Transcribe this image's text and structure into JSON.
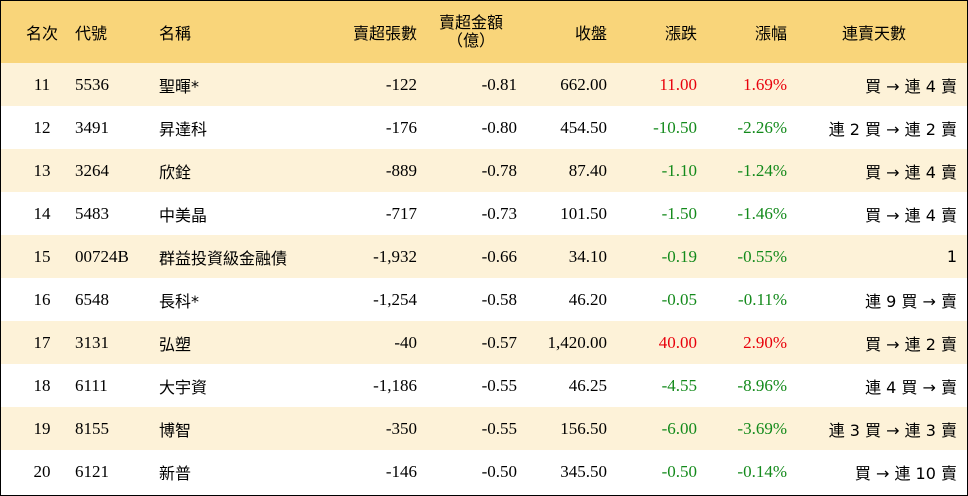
{
  "header": {
    "rank": "名次",
    "code": "代號",
    "name": "名稱",
    "net_sell_volume": "賣超張數",
    "net_sell_amount_line1": "賣超金額",
    "net_sell_amount_line2": "（億）",
    "close": "收盤",
    "change": "漲跌",
    "change_pct": "漲幅",
    "streak_days": "連賣天數"
  },
  "colors": {
    "header_bg": "#f9d57a",
    "alt_row_bg": "#fdf2d8",
    "up": "#e8000b",
    "down": "#138a1b"
  },
  "rows": [
    {
      "rank": "11",
      "code": "5536",
      "name": "聖暉*",
      "volume": "-122",
      "amount": "-0.81",
      "close": "662.00",
      "change": "11.00",
      "change_pct": "1.69%",
      "direction": "up",
      "streak": "買 → 連 4 賣"
    },
    {
      "rank": "12",
      "code": "3491",
      "name": "昇達科",
      "volume": "-176",
      "amount": "-0.80",
      "close": "454.50",
      "change": "-10.50",
      "change_pct": "-2.26%",
      "direction": "down",
      "streak": "連 2 買 → 連 2 賣"
    },
    {
      "rank": "13",
      "code": "3264",
      "name": "欣銓",
      "volume": "-889",
      "amount": "-0.78",
      "close": "87.40",
      "change": "-1.10",
      "change_pct": "-1.24%",
      "direction": "down",
      "streak": "買 → 連 4 賣"
    },
    {
      "rank": "14",
      "code": "5483",
      "name": "中美晶",
      "volume": "-717",
      "amount": "-0.73",
      "close": "101.50",
      "change": "-1.50",
      "change_pct": "-1.46%",
      "direction": "down",
      "streak": "買 → 連 4 賣"
    },
    {
      "rank": "15",
      "code": "00724B",
      "name": "群益投資級金融債",
      "volume": "-1,932",
      "amount": "-0.66",
      "close": "34.10",
      "change": "-0.19",
      "change_pct": "-0.55%",
      "direction": "down",
      "streak": "1"
    },
    {
      "rank": "16",
      "code": "6548",
      "name": "長科*",
      "volume": "-1,254",
      "amount": "-0.58",
      "close": "46.20",
      "change": "-0.05",
      "change_pct": "-0.11%",
      "direction": "down",
      "streak": "連 9 買 → 賣"
    },
    {
      "rank": "17",
      "code": "3131",
      "name": "弘塑",
      "volume": "-40",
      "amount": "-0.57",
      "close": "1,420.00",
      "change": "40.00",
      "change_pct": "2.90%",
      "direction": "up",
      "streak": "買 → 連 2 賣"
    },
    {
      "rank": "18",
      "code": "6111",
      "name": "大宇資",
      "volume": "-1,186",
      "amount": "-0.55",
      "close": "46.25",
      "change": "-4.55",
      "change_pct": "-8.96%",
      "direction": "down",
      "streak": "連 4 買 → 賣"
    },
    {
      "rank": "19",
      "code": "8155",
      "name": "博智",
      "volume": "-350",
      "amount": "-0.55",
      "close": "156.50",
      "change": "-6.00",
      "change_pct": "-3.69%",
      "direction": "down",
      "streak": "連 3 買 → 連 3 賣"
    },
    {
      "rank": "20",
      "code": "6121",
      "name": "新普",
      "volume": "-146",
      "amount": "-0.50",
      "close": "345.50",
      "change": "-0.50",
      "change_pct": "-0.14%",
      "direction": "down",
      "streak": "買 → 連 10 賣"
    }
  ]
}
